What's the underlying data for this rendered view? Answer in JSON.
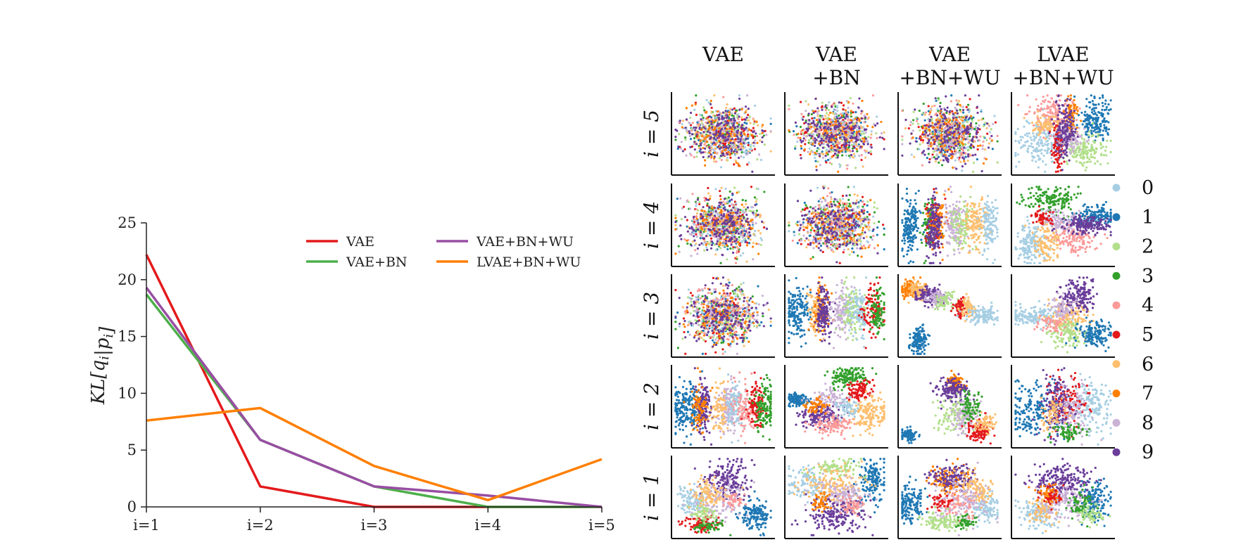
{
  "colors": {
    "VAE": "#e31a1c",
    "VAE+BN": "#4daf4a",
    "VAE+BN+WU": "#984ea3",
    "LVAE+BN+WU": "#ff7f00",
    "digits": [
      "#a6cee3",
      "#1f78b4",
      "#b2df8a",
      "#33a02c",
      "#fb9a99",
      "#e31a1c",
      "#fdbf6f",
      "#ff7f00",
      "#cab2d6",
      "#6a3d9a"
    ]
  },
  "chart_data": [
    {
      "type": "line",
      "title": "",
      "xlabel": "",
      "ylabel": "KL[q_i|p_i]",
      "categories": [
        "i=1",
        "i=2",
        "i=3",
        "i=4",
        "i=5"
      ],
      "ylim": [
        0,
        25
      ],
      "yticks": [
        0,
        5,
        10,
        15,
        20,
        25
      ],
      "grid": false,
      "legend_placement": "top-right",
      "series": [
        {
          "name": "VAE",
          "values": [
            22.2,
            1.8,
            0.0,
            0.0,
            0.0
          ]
        },
        {
          "name": "VAE+BN",
          "values": [
            18.7,
            5.9,
            1.8,
            0.0,
            0.0
          ]
        },
        {
          "name": "VAE+BN+WU",
          "values": [
            19.3,
            5.9,
            1.8,
            1.0,
            0.0
          ]
        },
        {
          "name": "LVAE+BN+WU",
          "values": [
            7.6,
            8.7,
            3.6,
            0.6,
            4.2
          ]
        }
      ]
    },
    {
      "type": "scatter",
      "title": "",
      "columns": [
        [
          "VAE"
        ],
        [
          "VAE",
          "+BN"
        ],
        [
          "VAE",
          "+BN+WU"
        ],
        [
          "LVAE",
          "+BN+WU"
        ]
      ],
      "row_labels": [
        "i = 5",
        "i = 4",
        "i = 3",
        "i = 2",
        "i = 1"
      ],
      "legend_placement": "right",
      "legend": [
        "0",
        "1",
        "2",
        "3",
        "4",
        "5",
        "6",
        "7",
        "8",
        "9"
      ]
    }
  ]
}
